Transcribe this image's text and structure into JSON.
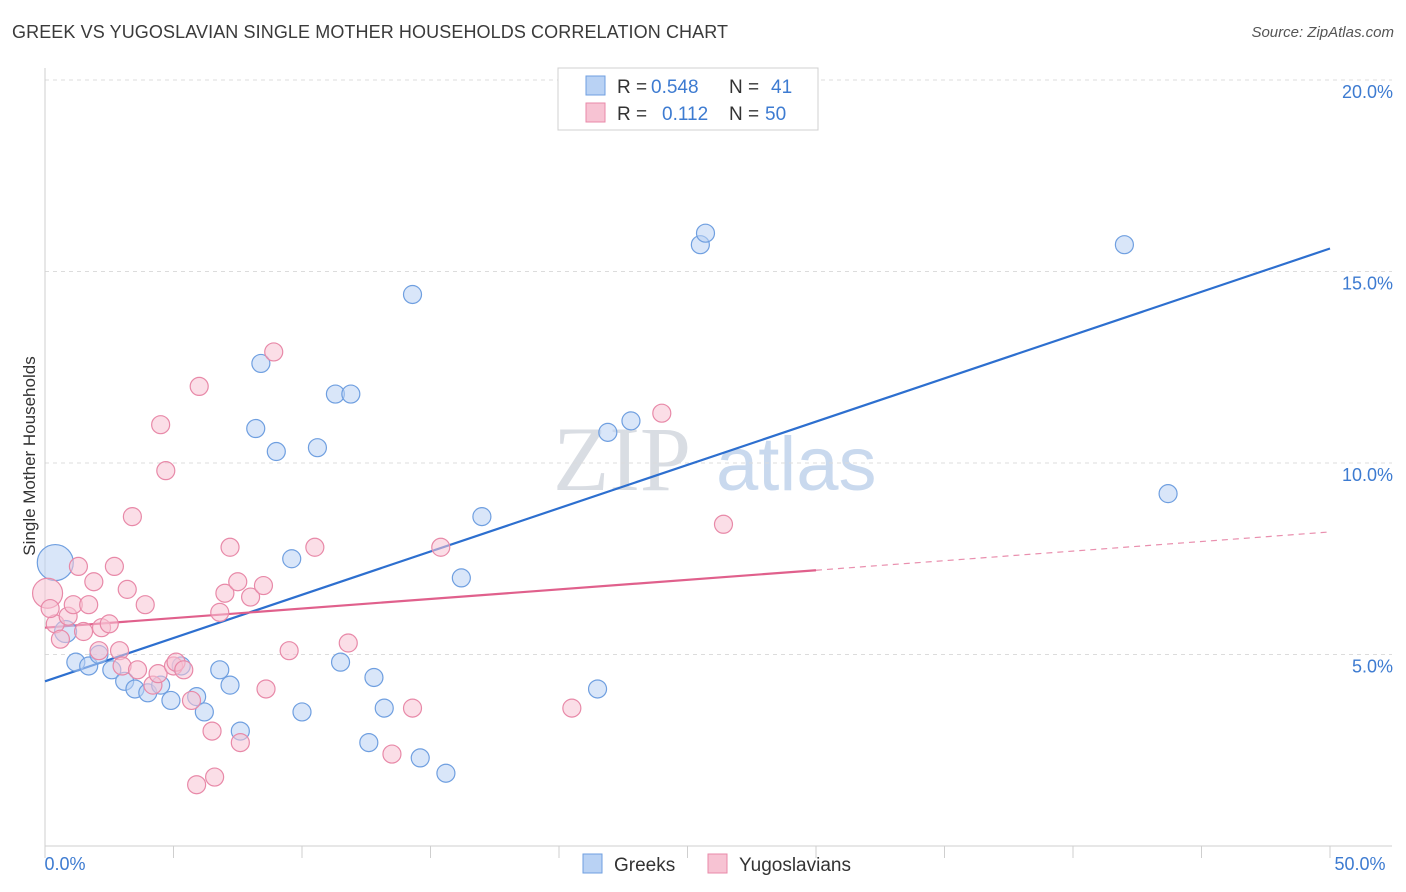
{
  "title": "GREEK VS YUGOSLAVIAN SINGLE MOTHER HOUSEHOLDS CORRELATION CHART",
  "source": "Source: ZipAtlas.com",
  "watermark": {
    "zip": "ZIP",
    "atlas": "atlas"
  },
  "chart_data": {
    "type": "scatter",
    "ylabel": "Single Mother Households",
    "xlim": [
      0,
      50
    ],
    "ylim": [
      0,
      20
    ],
    "x_tick_labels": [
      {
        "value": 0,
        "label": "0.0%"
      },
      {
        "value": 50,
        "label": "50.0%"
      }
    ],
    "y_tick_labels": [
      {
        "value": 5,
        "label": "5.0%"
      },
      {
        "value": 10,
        "label": "10.0%"
      },
      {
        "value": 15,
        "label": "15.0%"
      },
      {
        "value": 20,
        "label": "20.0%"
      }
    ],
    "legend": {
      "placement": "top-center",
      "rows": [
        {
          "r_label": "R =",
          "r_value": "0.548",
          "n_label": "N =",
          "n_value": "41"
        },
        {
          "r_label": "R =",
          "r_value": "0.112",
          "n_label": "N =",
          "n_value": "50"
        }
      ]
    },
    "series": [
      {
        "name": "Greeks",
        "color": "#6f9fe0",
        "fill": "#b9d2f4",
        "line_color": "#2d6fcf",
        "trend": {
          "x": [
            0,
            50
          ],
          "y": [
            4.3,
            15.6
          ]
        },
        "points": [
          [
            0.4,
            7.4
          ],
          [
            0.8,
            5.6
          ],
          [
            1.2,
            4.8
          ],
          [
            1.7,
            4.7
          ],
          [
            2.1,
            5.0
          ],
          [
            2.6,
            4.6
          ],
          [
            3.1,
            4.3
          ],
          [
            3.5,
            4.1
          ],
          [
            4.0,
            4.0
          ],
          [
            4.5,
            4.2
          ],
          [
            4.9,
            3.8
          ],
          [
            5.3,
            4.7
          ],
          [
            5.9,
            3.9
          ],
          [
            6.2,
            3.5
          ],
          [
            6.8,
            4.6
          ],
          [
            7.2,
            4.2
          ],
          [
            7.6,
            3.0
          ],
          [
            8.2,
            10.9
          ],
          [
            8.4,
            12.6
          ],
          [
            9.0,
            10.3
          ],
          [
            9.6,
            7.5
          ],
          [
            10.0,
            3.5
          ],
          [
            10.6,
            10.4
          ],
          [
            11.3,
            11.8
          ],
          [
            11.5,
            4.8
          ],
          [
            11.9,
            11.8
          ],
          [
            12.6,
            2.7
          ],
          [
            12.8,
            4.4
          ],
          [
            13.2,
            3.6
          ],
          [
            14.3,
            14.4
          ],
          [
            14.6,
            2.3
          ],
          [
            15.6,
            1.9
          ],
          [
            16.2,
            7.0
          ],
          [
            17.0,
            8.6
          ],
          [
            21.5,
            4.1
          ],
          [
            21.9,
            10.8
          ],
          [
            22.8,
            11.1
          ],
          [
            25.5,
            15.7
          ],
          [
            25.7,
            16.0
          ],
          [
            42.0,
            15.7
          ],
          [
            43.7,
            9.2
          ]
        ],
        "sizes": [
          18,
          11,
          9,
          9,
          9,
          9,
          9,
          9,
          9,
          9,
          9,
          9,
          9,
          9,
          9,
          9,
          9,
          9,
          9,
          9,
          9,
          9,
          9,
          9,
          9,
          9,
          9,
          9,
          9,
          9,
          9,
          9,
          9,
          9,
          9,
          9,
          9,
          9,
          9,
          9,
          9
        ]
      },
      {
        "name": "Yugoslavians",
        "color": "#e889a8",
        "fill": "#f7c3d3",
        "line_color": "#e0608c",
        "trend": {
          "x": [
            0,
            30
          ],
          "y": [
            5.7,
            7.2
          ]
        },
        "trend_dashed": {
          "x": [
            30,
            50
          ],
          "y": [
            7.2,
            8.2
          ]
        },
        "points": [
          [
            0.1,
            6.6
          ],
          [
            0.4,
            5.8
          ],
          [
            0.6,
            5.4
          ],
          [
            0.9,
            6.0
          ],
          [
            1.1,
            6.3
          ],
          [
            1.3,
            7.3
          ],
          [
            1.5,
            5.6
          ],
          [
            1.7,
            6.3
          ],
          [
            1.9,
            6.9
          ],
          [
            2.1,
            5.1
          ],
          [
            2.2,
            5.7
          ],
          [
            2.5,
            5.8
          ],
          [
            2.7,
            7.3
          ],
          [
            2.9,
            5.1
          ],
          [
            3.0,
            4.7
          ],
          [
            3.2,
            6.7
          ],
          [
            3.4,
            8.6
          ],
          [
            3.6,
            4.6
          ],
          [
            3.9,
            6.3
          ],
          [
            4.2,
            4.2
          ],
          [
            4.4,
            4.5
          ],
          [
            4.5,
            11.0
          ],
          [
            4.7,
            9.8
          ],
          [
            5.0,
            4.7
          ],
          [
            5.1,
            4.8
          ],
          [
            5.4,
            4.6
          ],
          [
            5.7,
            3.8
          ],
          [
            5.9,
            1.6
          ],
          [
            6.0,
            12.0
          ],
          [
            6.5,
            3.0
          ],
          [
            6.6,
            1.8
          ],
          [
            6.8,
            6.1
          ],
          [
            7.0,
            6.6
          ],
          [
            7.2,
            7.8
          ],
          [
            7.5,
            6.9
          ],
          [
            7.6,
            2.7
          ],
          [
            8.0,
            6.5
          ],
          [
            8.5,
            6.8
          ],
          [
            8.6,
            4.1
          ],
          [
            8.9,
            12.9
          ],
          [
            9.5,
            5.1
          ],
          [
            10.5,
            7.8
          ],
          [
            11.8,
            5.3
          ],
          [
            13.5,
            2.4
          ],
          [
            14.3,
            3.6
          ],
          [
            15.4,
            7.8
          ],
          [
            20.5,
            3.6
          ],
          [
            24.0,
            11.3
          ],
          [
            26.4,
            8.4
          ],
          [
            0.2,
            6.2
          ]
        ],
        "sizes": [
          15,
          9,
          9,
          9,
          9,
          9,
          9,
          9,
          9,
          9,
          9,
          9,
          9,
          9,
          9,
          9,
          9,
          9,
          9,
          9,
          9,
          9,
          9,
          9,
          9,
          9,
          9,
          9,
          9,
          9,
          9,
          9,
          9,
          9,
          9,
          9,
          9,
          9,
          9,
          9,
          9,
          9,
          9,
          9,
          9,
          9,
          9,
          9,
          9,
          9
        ]
      }
    ],
    "grid": true
  }
}
